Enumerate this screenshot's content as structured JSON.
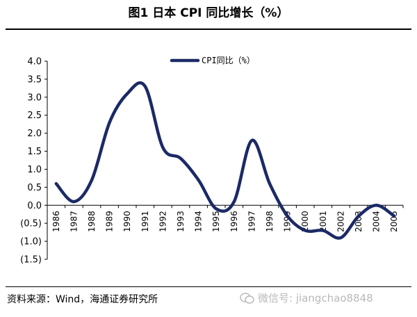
{
  "header": {
    "title": "图1  日本 CPI 同比增长（%）"
  },
  "footer": {
    "source": "资料来源：Wind，海通证券研究所",
    "watermark": "微信号: jiangchao8848"
  },
  "chart_data": {
    "type": "line",
    "title": "",
    "xlabel": "",
    "ylabel": "",
    "categories": [
      "1986",
      "1987",
      "1988",
      "1989",
      "1990",
      "1991",
      "1992",
      "1993",
      "1994",
      "1995",
      "1996",
      "1997",
      "1998",
      "1999",
      "2000",
      "2001",
      "2002",
      "2003",
      "2004",
      "2005"
    ],
    "series": [
      {
        "name": "CPI同比（%）",
        "color": "#1b2a66",
        "values": [
          0.6,
          0.1,
          0.7,
          2.3,
          3.1,
          3.3,
          1.6,
          1.3,
          0.7,
          -0.1,
          0.1,
          1.8,
          0.6,
          -0.3,
          -0.7,
          -0.7,
          -0.9,
          -0.3,
          0.0,
          -0.3
        ]
      }
    ],
    "ylim": [
      -1.5,
      4.0
    ],
    "yticks": [
      "4.0",
      "3.5",
      "3.0",
      "2.5",
      "2.0",
      "1.5",
      "1.0",
      "0.5",
      "0.0",
      "(0.5)",
      "(1.0)",
      "(1.5)"
    ],
    "ytick_values": [
      4.0,
      3.5,
      3.0,
      2.5,
      2.0,
      1.5,
      1.0,
      0.5,
      0.0,
      -0.5,
      -1.0,
      -1.5
    ],
    "grid": false,
    "legend_position": "top-center"
  }
}
